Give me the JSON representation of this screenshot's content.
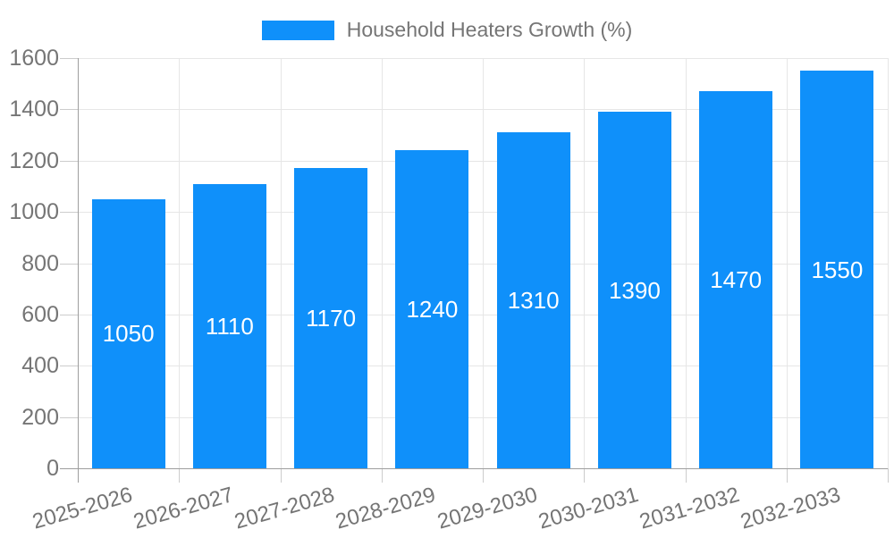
{
  "chart_data": {
    "type": "bar",
    "title": "",
    "legend": {
      "label": "Household Heaters Growth (%)",
      "position": "top"
    },
    "categories": [
      "2025-2026",
      "2026-2027",
      "2027-2028",
      "2028-2029",
      "2029-2030",
      "2030-2031",
      "2031-2032",
      "2032-2033"
    ],
    "values": [
      1050,
      1110,
      1170,
      1240,
      1310,
      1390,
      1470,
      1550
    ],
    "yticks": [
      0,
      200,
      400,
      600,
      800,
      1000,
      1200,
      1400,
      1600
    ],
    "ylim": [
      0,
      1600
    ],
    "grid": true,
    "value_labels_inside_bars": true,
    "colors": {
      "bar": "#0f90fa",
      "axis_label": "#757575",
      "value_label": "#ffffff",
      "gridline": "#e6e6e6",
      "axis_line": "#9e9e9e",
      "tick": "#cccccc",
      "background": "#ffffff"
    }
  }
}
